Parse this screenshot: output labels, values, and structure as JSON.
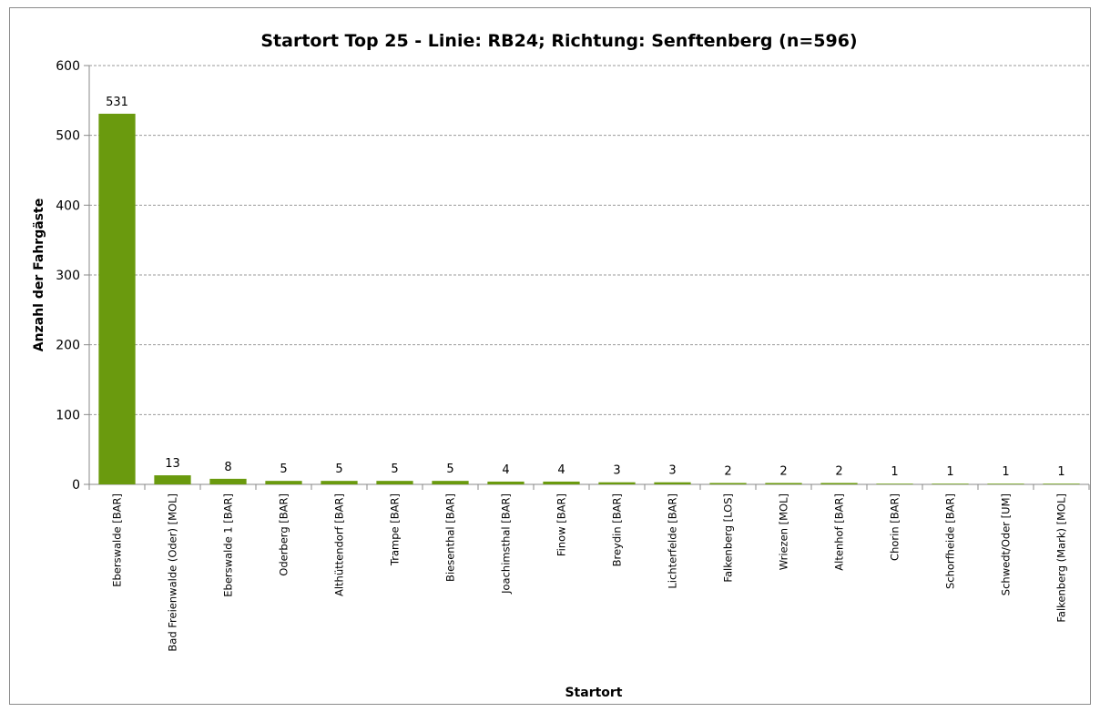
{
  "chart_data": {
    "type": "bar",
    "title": "Startort Top 25 - Linie: RB24; Richtung: Senftenberg (n=596)",
    "xlabel": "Startort",
    "ylabel": "Anzahl der Fahrgäste",
    "ylim": [
      0,
      600
    ],
    "yticks": [
      0,
      100,
      200,
      300,
      400,
      500,
      600
    ],
    "grid": true,
    "legend": "none",
    "bar_color": "#6a9a0e",
    "categories": [
      "Eberswalde [BAR]",
      "Bad Freienwalde (Oder) [MOL]",
      "Eberswalde 1 [BAR]",
      "Oderberg [BAR]",
      "Althüttendorf [BAR]",
      "Trampe [BAR]",
      "Biesenthal [BAR]",
      "Joachimsthal [BAR]",
      "Finow [BAR]",
      "Breydin [BAR]",
      "Lichterfelde [BAR]",
      "Falkenberg [LOS]",
      "Wriezen [MOL]",
      "Altenhof [BAR]",
      "Chorin [BAR]",
      "Schorfheide [BAR]",
      "Schwedt/Oder [UM]",
      "Falkenberg (Mark) [MOL]"
    ],
    "values": [
      531,
      13,
      8,
      5,
      5,
      5,
      5,
      4,
      4,
      3,
      3,
      2,
      2,
      2,
      1,
      1,
      1,
      1
    ]
  }
}
